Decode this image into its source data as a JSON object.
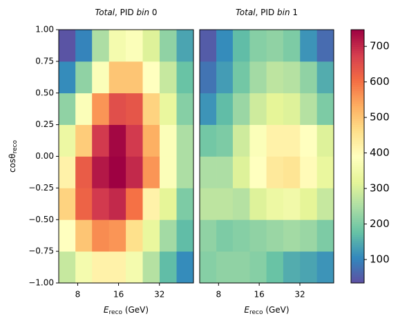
{
  "chart_data": [
    {
      "type": "heatmap",
      "title": [
        "Total",
        ",  PID ",
        "bin",
        " 0"
      ],
      "xlabel": [
        "E",
        "reco",
        " (GeV)"
      ],
      "ylabel": [
        "cosθ",
        "reco"
      ],
      "xscale": "log",
      "xbins": [
        5.8,
        7.7,
        10.2,
        13.6,
        18.1,
        24.1,
        32.1,
        42.8,
        57.0
      ],
      "xlim": [
        5.8,
        57.0
      ],
      "xticks": [
        8,
        16,
        32
      ],
      "ybins": [
        -1,
        -0.75,
        -0.5,
        -0.25,
        0,
        0.25,
        0.5,
        0.75,
        1
      ],
      "ylim": [
        -1,
        1
      ],
      "yticks": [
        {
          "value": -1,
          "label": "−1.00"
        },
        {
          "value": -0.75,
          "label": "−0.75"
        },
        {
          "value": -0.5,
          "label": "−0.50"
        },
        {
          "value": -0.25,
          "label": "−0.25"
        },
        {
          "value": 0,
          "label": "0.00"
        },
        {
          "value": 0.25,
          "label": "0.25"
        },
        {
          "value": 0.5,
          "label": "0.50"
        },
        {
          "value": 0.75,
          "label": "0.75"
        },
        {
          "value": 1,
          "label": "1.00"
        }
      ],
      "values": [
        [
          280,
          360,
          420,
          420,
          360,
          260,
          170,
          110
        ],
        [
          390,
          500,
          570,
          560,
          460,
          330,
          240,
          170
        ],
        [
          480,
          620,
          680,
          700,
          600,
          420,
          320,
          200
        ],
        [
          420,
          630,
          720,
          747,
          700,
          560,
          380,
          250
        ],
        [
          340,
          490,
          680,
          740,
          680,
          530,
          380,
          250
        ],
        [
          220,
          380,
          560,
          650,
          640,
          480,
          330,
          210
        ],
        [
          110,
          220,
          380,
          500,
          500,
          390,
          280,
          180
        ],
        [
          40,
          100,
          250,
          360,
          380,
          310,
          220,
          140
        ]
      ]
    },
    {
      "type": "heatmap",
      "title": [
        "Total",
        ",  PID ",
        "bin",
        " 1"
      ],
      "xlabel": [
        "E",
        "reco",
        " (GeV)"
      ],
      "xscale": "log",
      "xbins": [
        5.8,
        7.7,
        10.2,
        13.6,
        18.1,
        24.1,
        32.1,
        42.8,
        57.0
      ],
      "xlim": [
        5.8,
        57.0
      ],
      "xticks": [
        8,
        16,
        32
      ],
      "ybins": [
        -1,
        -0.75,
        -0.5,
        -0.25,
        0,
        0.25,
        0.5,
        0.75,
        1
      ],
      "ylim": [
        -1,
        1
      ],
      "values": [
        [
          210,
          220,
          220,
          210,
          180,
          150,
          140,
          120
        ],
        [
          220,
          200,
          210,
          220,
          230,
          240,
          230,
          200
        ],
        [
          270,
          270,
          260,
          310,
          340,
          350,
          320,
          280
        ],
        [
          250,
          250,
          310,
          390,
          440,
          450,
          400,
          330
        ],
        [
          190,
          200,
          290,
          380,
          420,
          420,
          390,
          310
        ],
        [
          120,
          170,
          230,
          290,
          320,
          310,
          260,
          200
        ],
        [
          80,
          130,
          190,
          240,
          270,
          260,
          220,
          150
        ],
        [
          50,
          110,
          170,
          210,
          220,
          200,
          120,
          70
        ]
      ]
    }
  ],
  "colorbar": {
    "colormap": "Spectral_r",
    "lim": [
      34,
      747
    ],
    "ticks": [
      100,
      200,
      300,
      400,
      500,
      600,
      700
    ]
  }
}
